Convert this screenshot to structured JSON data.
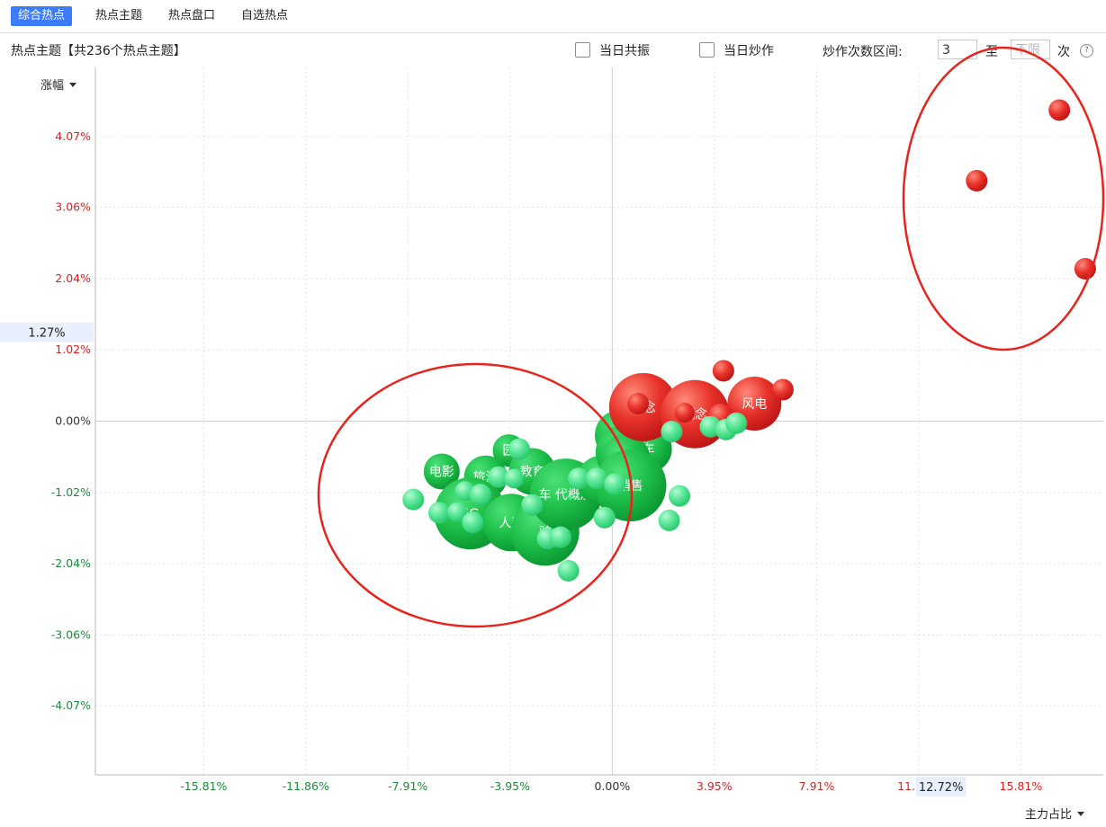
{
  "tabs": [
    "综合热点",
    "热点主题",
    "热点盘口",
    "自选热点"
  ],
  "toolbar": {
    "title": "热点主题【共236个热点主题】",
    "resonance_label": "当日共振",
    "hype_label": "当日炒作",
    "range_label": "炒作次数区间:",
    "range_from": "3",
    "to_label": "至",
    "range_to_placeholder": "不限",
    "times_label": "次",
    "help": "?"
  },
  "axes": {
    "y_selector": "涨幅",
    "x_selector": "主力占比"
  },
  "colors": {
    "positive": "#e02020",
    "negative": "#1a8c3a",
    "active_tab": "#3b7cff",
    "annotation": "#e8231c"
  },
  "chart_data": {
    "type": "scatter",
    "x_label": "主力占比",
    "y_label": "涨幅",
    "xlim": [
      -20.0,
      19.0
    ],
    "ylim": [
      -5.06,
      5.06
    ],
    "x_ticks": [
      "-15.81%",
      "-11.86%",
      "-7.91%",
      "-3.95%",
      "0.00%",
      "3.95%",
      "7.91%",
      "11.86%",
      "15.81%"
    ],
    "x_tick_values": [
      -15.81,
      -11.86,
      -7.91,
      -3.95,
      0.0,
      3.95,
      7.91,
      11.86,
      15.81
    ],
    "y_ticks": [
      "4.07%",
      "3.06%",
      "2.04%",
      "1.02%",
      "0.00%",
      "-1.02%",
      "-2.04%",
      "-3.06%",
      "-4.07%"
    ],
    "y_tick_values": [
      4.07,
      3.06,
      2.04,
      1.02,
      0.0,
      -1.02,
      -2.04,
      -3.06,
      -4.07
    ],
    "crosshair_y_label": "1.27%",
    "crosshair_x_label": "12.72%",
    "grid": true,
    "points": [
      {
        "x": 1.2,
        "y": 0.2,
        "r": 38,
        "label": "概念",
        "group": "red"
      },
      {
        "x": 3.2,
        "y": 0.1,
        "r": 38,
        "label": "概念",
        "group": "red"
      },
      {
        "x": 5.5,
        "y": 0.25,
        "r": 30,
        "label": "风电",
        "group": "red"
      },
      {
        "x": 4.2,
        "y": 0.07,
        "r": 14,
        "label": "",
        "group": "red"
      },
      {
        "x": 1.0,
        "y": 0.25,
        "r": 12,
        "label": "",
        "group": "red"
      },
      {
        "x": 2.8,
        "y": 0.12,
        "r": 11,
        "label": "",
        "group": "red"
      },
      {
        "x": 4.3,
        "y": 0.72,
        "r": 12,
        "label": "",
        "group": "red"
      },
      {
        "x": 6.6,
        "y": 0.45,
        "r": 12,
        "label": "",
        "group": "red"
      },
      {
        "x": 14.1,
        "y": 3.44,
        "r": 12,
        "label": "",
        "group": "red"
      },
      {
        "x": 17.3,
        "y": 4.45,
        "r": 12,
        "label": "",
        "group": "red"
      },
      {
        "x": 18.3,
        "y": 2.18,
        "r": 12,
        "label": "",
        "group": "red"
      },
      {
        "x": -6.6,
        "y": -0.72,
        "r": 20,
        "label": "电影",
        "group": "green"
      },
      {
        "x": -4.0,
        "y": -0.42,
        "r": 18,
        "label": "园",
        "group": "green"
      },
      {
        "x": -4.9,
        "y": -0.8,
        "r": 24,
        "label": "旅游",
        "group": "green"
      },
      {
        "x": -3.1,
        "y": -0.72,
        "r": 26,
        "label": "教育",
        "group": "green"
      },
      {
        "x": -5.5,
        "y": -1.32,
        "r": 40,
        "label": "5G",
        "group": "green"
      },
      {
        "x": -3.9,
        "y": -1.45,
        "r": 32,
        "label": "人驾",
        "group": "green"
      },
      {
        "x": -2.6,
        "y": -1.58,
        "r": 38,
        "label": "驶",
        "group": "green"
      },
      {
        "x": -1.8,
        "y": -1.05,
        "r": 40,
        "label": "车 代概念",
        "group": "green"
      },
      {
        "x": 0.3,
        "y": -0.2,
        "r": 28,
        "label": "汽",
        "group": "green"
      },
      {
        "x": -0.4,
        "y": -0.85,
        "r": 28,
        "label": "营时",
        "group": "green"
      },
      {
        "x": 0.4,
        "y": -0.45,
        "r": 30,
        "label": "新",
        "group": "green"
      },
      {
        "x": 1.4,
        "y": -0.4,
        "r": 26,
        "label": "车",
        "group": "green"
      },
      {
        "x": 0.5,
        "y": -0.55,
        "r": 28,
        "label": "储能",
        "group": "green"
      },
      {
        "x": 0.7,
        "y": -0.92,
        "r": 40,
        "label": "销售",
        "group": "green"
      },
      {
        "x": -7.7,
        "y": -1.12,
        "r": 12,
        "label": "",
        "group": "lightgreen"
      },
      {
        "x": -6.7,
        "y": -1.31,
        "r": 12,
        "label": "",
        "group": "lightgreen"
      },
      {
        "x": -6.0,
        "y": -1.3,
        "r": 11,
        "label": "",
        "group": "lightgreen"
      },
      {
        "x": -5.4,
        "y": -1.45,
        "r": 12,
        "label": "",
        "group": "lightgreen"
      },
      {
        "x": -5.7,
        "y": -1.0,
        "r": 11,
        "label": "",
        "group": "lightgreen"
      },
      {
        "x": -5.1,
        "y": -1.05,
        "r": 12,
        "label": "",
        "group": "lightgreen"
      },
      {
        "x": -4.4,
        "y": -0.8,
        "r": 12,
        "label": "",
        "group": "lightgreen"
      },
      {
        "x": -3.6,
        "y": -0.4,
        "r": 12,
        "label": "",
        "group": "lightgreen"
      },
      {
        "x": -3.8,
        "y": -0.82,
        "r": 11,
        "label": "",
        "group": "lightgreen"
      },
      {
        "x": -3.1,
        "y": -1.2,
        "r": 12,
        "label": "",
        "group": "lightgreen"
      },
      {
        "x": -2.5,
        "y": -1.68,
        "r": 12,
        "label": "",
        "group": "lightgreen"
      },
      {
        "x": -2.0,
        "y": -1.66,
        "r": 12,
        "label": "",
        "group": "lightgreen"
      },
      {
        "x": -1.7,
        "y": -2.14,
        "r": 12,
        "label": "",
        "group": "lightgreen"
      },
      {
        "x": -1.3,
        "y": -0.82,
        "r": 12,
        "label": "",
        "group": "lightgreen"
      },
      {
        "x": -0.6,
        "y": -0.82,
        "r": 12,
        "label": "",
        "group": "lightgreen"
      },
      {
        "x": -0.3,
        "y": -1.38,
        "r": 12,
        "label": "",
        "group": "lightgreen"
      },
      {
        "x": 0.1,
        "y": -0.9,
        "r": 12,
        "label": "",
        "group": "lightgreen"
      },
      {
        "x": 2.3,
        "y": -0.15,
        "r": 12,
        "label": "",
        "group": "lightgreen"
      },
      {
        "x": 3.8,
        "y": -0.08,
        "r": 12,
        "label": "",
        "group": "lightgreen"
      },
      {
        "x": 4.4,
        "y": -0.12,
        "r": 12,
        "label": "",
        "group": "lightgreen"
      },
      {
        "x": 4.8,
        "y": -0.03,
        "r": 12,
        "label": "",
        "group": "lightgreen"
      },
      {
        "x": 2.2,
        "y": -1.42,
        "r": 12,
        "label": "",
        "group": "lightgreen"
      },
      {
        "x": 2.6,
        "y": -1.07,
        "r": 12,
        "label": "",
        "group": "lightgreen"
      }
    ]
  }
}
